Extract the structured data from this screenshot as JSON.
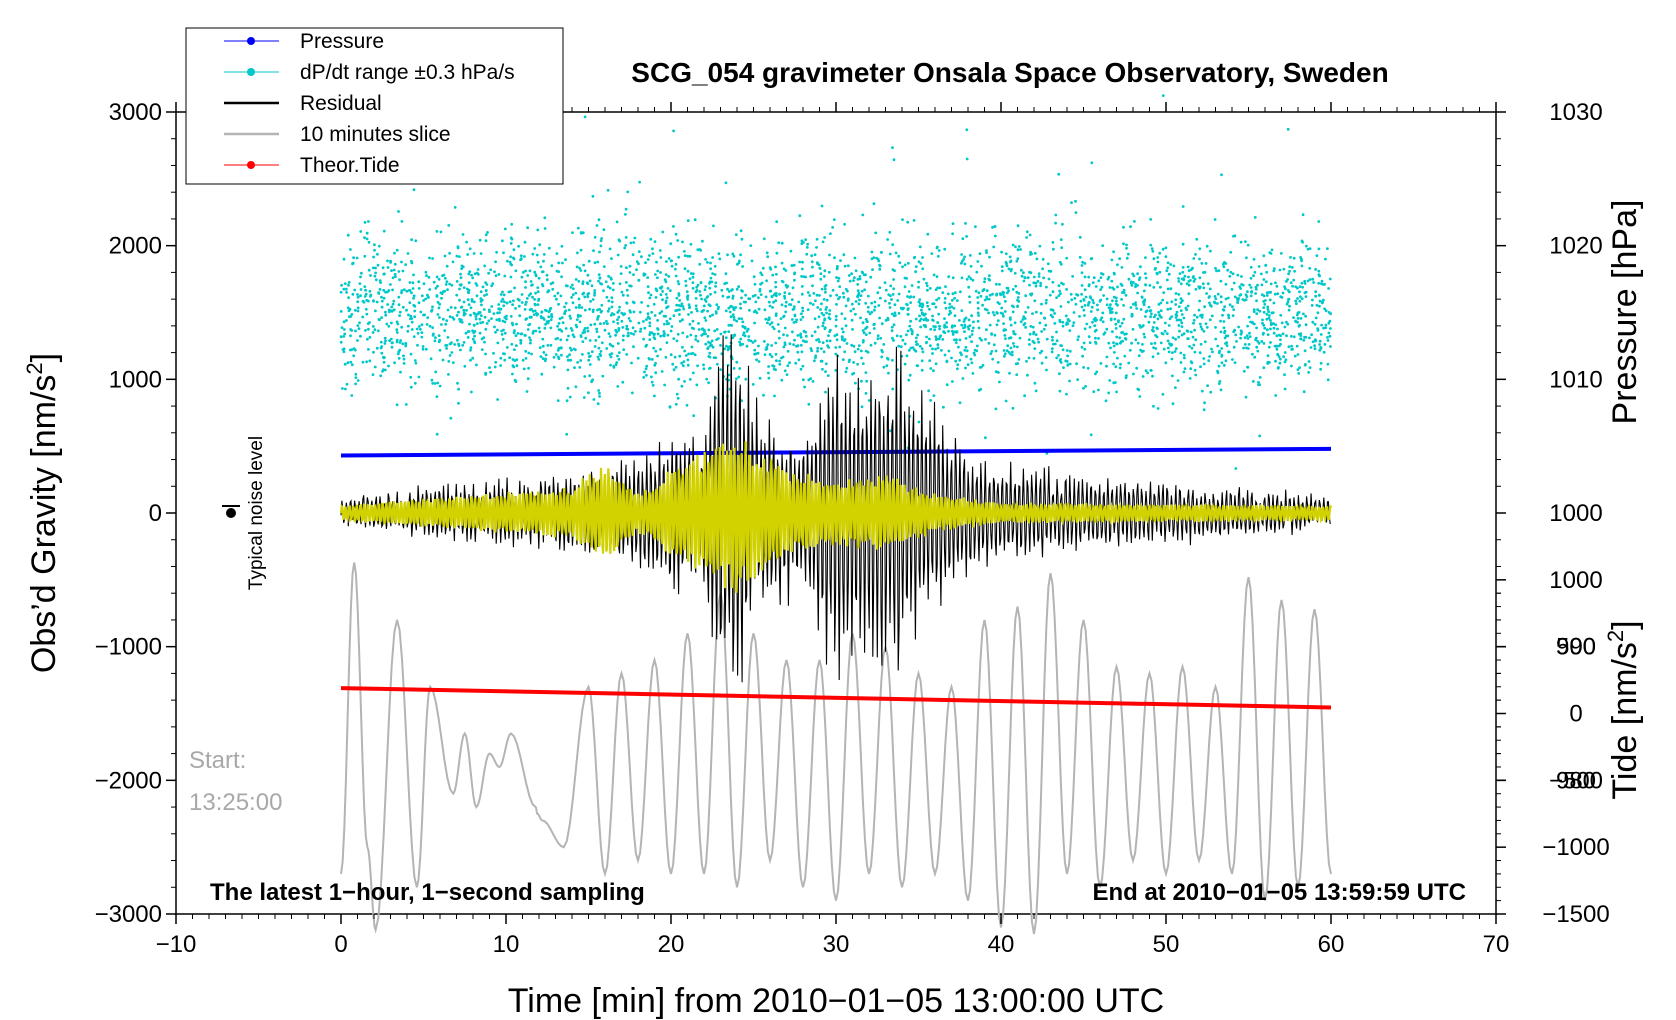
{
  "chart_data": {
    "type": "line",
    "title": "SCG_054 gravimeter Onsala Space Observatory, Sweden",
    "xlabel": "Time [min] from 2010−01−05 13:00:00 UTC",
    "ylabel_left": "Obs’d Gravity [nm/s",
    "ylabel_left_sup": "2",
    "ylabel_left_tail": "]",
    "ylabel_right_top": "Pressure [hPa]",
    "ylabel_right_bottom": "Tide [nm/s",
    "ylabel_right_bottom_sup": "2",
    "ylabel_right_bottom_tail": "]",
    "xlim": [
      -10,
      70
    ],
    "ylim_left": [
      -3000,
      3000
    ],
    "ylim_pressure": [
      970,
      1030
    ],
    "ylim_tide": [
      -1500,
      4500
    ],
    "x_ticks": [
      "−10",
      "0",
      "10",
      "20",
      "30",
      "40",
      "50",
      "60",
      "70"
    ],
    "x_tick_values": [
      -10,
      0,
      10,
      20,
      30,
      40,
      50,
      60,
      70
    ],
    "y_left_ticks": [
      "3000",
      "2000",
      "1000",
      "0",
      "−1000",
      "−2000",
      "−3000"
    ],
    "y_left_tick_values": [
      3000,
      2000,
      1000,
      0,
      -1000,
      -2000,
      -3000
    ],
    "pressure_ticks": [
      "1030",
      "1020",
      "1010",
      "1000",
      "990",
      "980"
    ],
    "pressure_tick_values": [
      1030,
      1020,
      1010,
      1000,
      990,
      980
    ],
    "tide_ticks": [
      "1000",
      "500",
      "0",
      "−500",
      "−1000",
      "−1500"
    ],
    "tide_tick_values": [
      1000,
      500,
      0,
      -500,
      -1000,
      -1500
    ],
    "legend": [
      {
        "label": "Pressure",
        "color": "#0000ff",
        "marker": "dot"
      },
      {
        "label": "dP/dt range ±0.3 hPa/s",
        "color": "#00c8c8",
        "marker": "dot"
      },
      {
        "label": "Residual",
        "color": "#000000",
        "marker": "line"
      },
      {
        "label": "10 minutes slice",
        "color": "#b4b4b4",
        "marker": "line"
      },
      {
        "label": "Theor.Tide",
        "color": "#ff0000",
        "marker": "dot"
      }
    ],
    "legend_position": "top-left",
    "series": [
      {
        "name": "Pressure",
        "axis": "pressure",
        "color": "#0000ff",
        "x": [
          0,
          60
        ],
        "values": [
          1004.3,
          1004.8
        ]
      },
      {
        "name": "Theor.Tide",
        "axis": "tide",
        "color": "#ff0000",
        "x": [
          0,
          60
        ],
        "values": [
          190,
          45
        ]
      },
      {
        "name": "dP/dt",
        "axis": "left",
        "color": "#00c8c8",
        "center": 1500,
        "spread": 280,
        "x_range": [
          0,
          60
        ]
      },
      {
        "name": "Residual",
        "axis": "left",
        "color": "#000000",
        "envelope": [
          [
            0,
            120
          ],
          [
            13,
            300
          ],
          [
            18,
            450
          ],
          [
            22,
            700
          ],
          [
            23,
            1400
          ],
          [
            24,
            1500
          ],
          [
            25,
            1000
          ],
          [
            28,
            600
          ],
          [
            30,
            1400
          ],
          [
            31,
            1100
          ],
          [
            34,
            1400
          ],
          [
            35,
            1000
          ],
          [
            38,
            450
          ],
          [
            45,
            300
          ],
          [
            60,
            120
          ]
        ]
      },
      {
        "name": "Filtered",
        "axis": "left",
        "color": "#d2d200",
        "envelope": [
          [
            0,
            60
          ],
          [
            14,
            200
          ],
          [
            16,
            400
          ],
          [
            18,
            150
          ],
          [
            20,
            350
          ],
          [
            23,
            550
          ],
          [
            24,
            620
          ],
          [
            25,
            500
          ],
          [
            27,
            350
          ],
          [
            30,
            250
          ],
          [
            33,
            300
          ],
          [
            36,
            150
          ],
          [
            40,
            80
          ],
          [
            60,
            60
          ]
        ]
      },
      {
        "name": "10 minutes slice",
        "axis": "left",
        "color": "#b4b4b4",
        "x_range": [
          0,
          60
        ],
        "peaks": [
          [
            0,
            -2700
          ],
          [
            0.8,
            -370
          ],
          [
            1.6,
            -2500
          ],
          [
            2.1,
            -3120
          ],
          [
            3.4,
            -800
          ],
          [
            4.6,
            -2800
          ],
          [
            5.4,
            -1300
          ],
          [
            6.8,
            -2100
          ],
          [
            7.5,
            -1650
          ],
          [
            8.2,
            -2200
          ],
          [
            9,
            -1800
          ],
          [
            9.6,
            -1900
          ],
          [
            10.3,
            -1650
          ],
          [
            11.8,
            -2200
          ],
          [
            11.9,
            -2250
          ],
          [
            12.2,
            -2300
          ],
          [
            13.5,
            -2500
          ],
          [
            15,
            -1300
          ],
          [
            16,
            -2700
          ],
          [
            17,
            -1200
          ],
          [
            18,
            -2600
          ],
          [
            19,
            -1100
          ],
          [
            20,
            -2700
          ],
          [
            21,
            -900
          ],
          [
            22,
            -2700
          ],
          [
            23,
            -600
          ],
          [
            24,
            -2800
          ],
          [
            25,
            -900
          ],
          [
            26,
            -2600
          ],
          [
            27,
            -1100
          ],
          [
            28,
            -2800
          ],
          [
            29,
            -1100
          ],
          [
            30,
            -2900
          ],
          [
            31,
            -900
          ],
          [
            32,
            -2700
          ],
          [
            33,
            -1000
          ],
          [
            34,
            -2800
          ],
          [
            35,
            -1200
          ],
          [
            36,
            -2700
          ],
          [
            37,
            -1300
          ],
          [
            38,
            -2900
          ],
          [
            39,
            -800
          ],
          [
            40,
            -3100
          ],
          [
            41,
            -700
          ],
          [
            42,
            -3150
          ],
          [
            43,
            -450
          ],
          [
            44,
            -2700
          ],
          [
            45,
            -800
          ],
          [
            46,
            -2800
          ],
          [
            47,
            -1150
          ],
          [
            48,
            -2600
          ],
          [
            49,
            -1200
          ],
          [
            50,
            -2700
          ],
          [
            51,
            -1150
          ],
          [
            52,
            -2600
          ],
          [
            53,
            -1300
          ],
          [
            54,
            -2700
          ],
          [
            55,
            -480
          ],
          [
            56,
            -2900
          ],
          [
            57,
            -650
          ],
          [
            58,
            -2800
          ],
          [
            59,
            -720
          ],
          [
            60,
            -2700
          ]
        ]
      }
    ],
    "annotations": {
      "noise_label": "Typical noise level",
      "start_label": "Start:",
      "start_time": "13:25:00",
      "bottom_left": "The latest 1−hour, 1−second sampling",
      "bottom_right": "End at 2010−01−05 13:59:59 UTC"
    }
  }
}
